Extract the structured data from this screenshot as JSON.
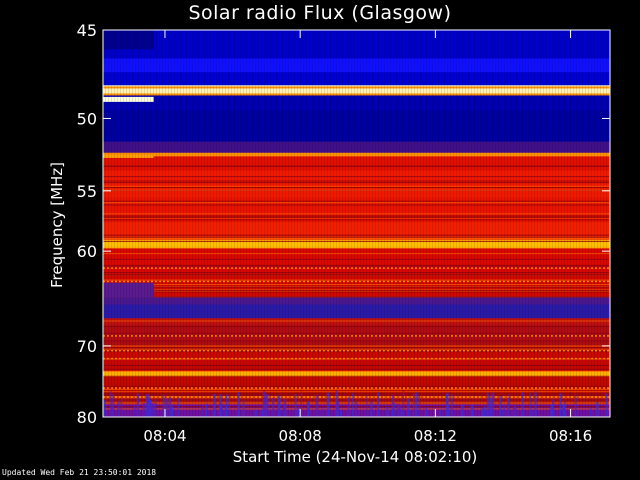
{
  "title": "Solar radio Flux (Glasgow)",
  "footer": "Updated Wed Feb 21 23:50:01 2018",
  "chart_data": {
    "type": "heatmap",
    "title": "Solar radio Flux (Glasgow)",
    "ylabel": "Frequency [MHz]",
    "xlabel": "Start Time (24-Nov-14 08:02:10)",
    "start_time": "08:02:10",
    "end_time": "08:17:10",
    "x_ticks": [
      "08:04",
      "08:08",
      "08:12",
      "08:16"
    ],
    "y_ticks": [
      45,
      50,
      55,
      60,
      70,
      80
    ],
    "ylim": [
      45,
      80
    ],
    "y_scale": "reciprocal (frequency decreasing downward, compressed at high values)",
    "colormap": [
      "#000080",
      "#0000ff",
      "#3a1fa0",
      "#9b1020",
      "#d40000",
      "#ff3000",
      "#ff6a00",
      "#ffc000",
      "#ffffe0"
    ],
    "bands": [
      {
        "from": 45,
        "to": 52,
        "level": "low"
      },
      {
        "from": 48.1,
        "to": 48.5,
        "level": "very high"
      },
      {
        "from": 52.2,
        "to": 64,
        "level": "medium-high"
      },
      {
        "from": 59.2,
        "to": 59.6,
        "level": "high"
      },
      {
        "from": 64.5,
        "to": 67,
        "level": "low"
      },
      {
        "from": 67,
        "to": 80,
        "level": "medium"
      },
      {
        "from": 73.4,
        "to": 73.9,
        "level": "high"
      }
    ]
  }
}
